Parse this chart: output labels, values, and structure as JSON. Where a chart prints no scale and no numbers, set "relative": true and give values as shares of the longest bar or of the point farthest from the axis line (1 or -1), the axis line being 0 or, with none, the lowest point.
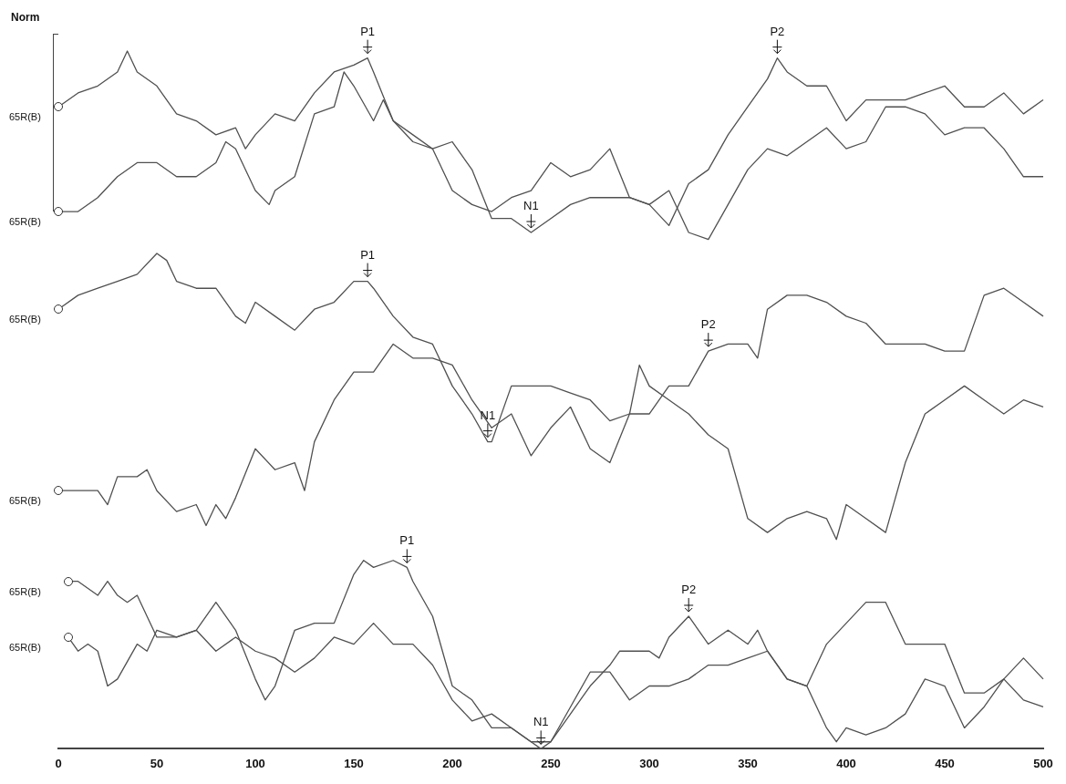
{
  "chart_data": {
    "type": "line",
    "relative": true,
    "xlim": [
      0,
      500
    ],
    "xticks": [
      0,
      50,
      100,
      150,
      200,
      250,
      300,
      350,
      400,
      450,
      500
    ],
    "annotations": [
      "Norm",
      {
        "text": "P1",
        "x": 157,
        "y": 0.99
      },
      {
        "text": "N1",
        "x": 240,
        "y": 0.74
      },
      {
        "text": "P2",
        "x": 365,
        "y": 0.99
      },
      {
        "text": "P1",
        "x": 157,
        "y": 0.67
      },
      {
        "text": "N1",
        "x": 218,
        "y": 0.44
      },
      {
        "text": "P2",
        "x": 330,
        "y": 0.57
      },
      {
        "text": "P1",
        "x": 177,
        "y": 0.26
      },
      {
        "text": "N1",
        "x": 245,
        "y": 0.0
      },
      {
        "text": "P2",
        "x": 320,
        "y": 0.19
      }
    ],
    "series": [
      {
        "name": "65R(B)",
        "color": "#505050",
        "x": [
          0,
          10,
          20,
          30,
          35,
          40,
          50,
          60,
          70,
          80,
          90,
          95,
          100,
          110,
          120,
          130,
          140,
          150,
          157,
          160,
          170,
          180,
          190,
          200,
          210,
          220,
          230,
          240,
          250,
          260,
          270,
          280,
          290,
          300,
          310,
          320,
          330,
          340,
          350,
          360,
          365,
          370,
          380,
          390,
          400,
          410,
          420,
          430,
          440,
          450,
          460,
          470,
          480,
          490,
          500
        ],
        "values": [
          0.92,
          0.94,
          0.95,
          0.97,
          1,
          0.97,
          0.95,
          0.91,
          0.9,
          0.88,
          0.89,
          0.86,
          0.88,
          0.91,
          0.9,
          0.94,
          0.97,
          0.98,
          0.99,
          0.97,
          0.9,
          0.87,
          0.86,
          0.8,
          0.78,
          0.77,
          0.79,
          0.8,
          0.84,
          0.82,
          0.83,
          0.86,
          0.79,
          0.78,
          0.75,
          0.81,
          0.83,
          0.88,
          0.92,
          0.96,
          0.99,
          0.97,
          0.95,
          0.95,
          0.9,
          0.93,
          0.93,
          0.93,
          0.94,
          0.95,
          0.92,
          0.92,
          0.94,
          0.91,
          0.93
        ]
      },
      {
        "name": "65R(B)",
        "color": "#505050",
        "x": [
          0,
          10,
          20,
          30,
          40,
          50,
          60,
          70,
          80,
          85,
          90,
          100,
          107,
          110,
          120,
          130,
          140,
          145,
          150,
          160,
          165,
          170,
          180,
          190,
          200,
          210,
          220,
          230,
          240,
          250,
          260,
          270,
          280,
          290,
          300,
          310,
          320,
          330,
          340,
          350,
          360,
          370,
          380,
          390,
          400,
          410,
          420,
          430,
          440,
          450,
          460,
          470,
          480,
          490,
          500
        ],
        "values": [
          0.77,
          0.77,
          0.79,
          0.82,
          0.84,
          0.84,
          0.82,
          0.82,
          0.84,
          0.87,
          0.86,
          0.8,
          0.78,
          0.8,
          0.82,
          0.91,
          0.92,
          0.97,
          0.95,
          0.9,
          0.93,
          0.9,
          0.88,
          0.86,
          0.87,
          0.83,
          0.76,
          0.76,
          0.74,
          0.76,
          0.78,
          0.79,
          0.79,
          0.79,
          0.78,
          0.8,
          0.74,
          0.73,
          0.78,
          0.83,
          0.86,
          0.85,
          0.87,
          0.89,
          0.86,
          0.87,
          0.92,
          0.92,
          0.91,
          0.88,
          0.89,
          0.89,
          0.86,
          0.82,
          0.82
        ]
      },
      {
        "name": "65R(B)",
        "color": "#505050",
        "x": [
          0,
          10,
          20,
          30,
          40,
          50,
          55,
          60,
          70,
          80,
          90,
          95,
          100,
          110,
          120,
          130,
          140,
          150,
          157,
          160,
          170,
          180,
          190,
          200,
          210,
          218,
          220,
          230,
          240,
          250,
          260,
          270,
          280,
          290,
          300,
          310,
          320,
          330,
          340,
          350,
          355,
          360,
          370,
          380,
          390,
          400,
          410,
          420,
          430,
          440,
          450,
          460,
          470,
          480,
          490,
          500
        ],
        "values": [
          0.63,
          0.65,
          0.66,
          0.67,
          0.68,
          0.71,
          0.7,
          0.67,
          0.66,
          0.66,
          0.62,
          0.61,
          0.64,
          0.62,
          0.6,
          0.63,
          0.64,
          0.67,
          0.67,
          0.66,
          0.62,
          0.59,
          0.58,
          0.52,
          0.48,
          0.44,
          0.44,
          0.52,
          0.52,
          0.52,
          0.51,
          0.5,
          0.47,
          0.48,
          0.48,
          0.52,
          0.52,
          0.57,
          0.58,
          0.58,
          0.56,
          0.63,
          0.65,
          0.65,
          0.64,
          0.62,
          0.61,
          0.58,
          0.58,
          0.58,
          0.57,
          0.57,
          0.65,
          0.66,
          0.64,
          0.62
        ]
      },
      {
        "name": "65R(B)",
        "color": "#505050",
        "x": [
          0,
          10,
          20,
          25,
          30,
          40,
          45,
          50,
          60,
          70,
          75,
          80,
          85,
          90,
          100,
          110,
          120,
          125,
          130,
          140,
          150,
          160,
          170,
          180,
          190,
          200,
          210,
          220,
          230,
          240,
          250,
          260,
          270,
          280,
          290,
          295,
          300,
          310,
          320,
          330,
          340,
          350,
          360,
          370,
          380,
          390,
          395,
          400,
          410,
          420,
          430,
          440,
          450,
          460,
          470,
          480,
          490,
          500
        ],
        "values": [
          0.37,
          0.37,
          0.37,
          0.35,
          0.39,
          0.39,
          0.4,
          0.37,
          0.34,
          0.35,
          0.32,
          0.35,
          0.33,
          0.36,
          0.43,
          0.4,
          0.41,
          0.37,
          0.44,
          0.5,
          0.54,
          0.54,
          0.58,
          0.56,
          0.56,
          0.55,
          0.5,
          0.46,
          0.48,
          0.42,
          0.46,
          0.49,
          0.43,
          0.41,
          0.48,
          0.55,
          0.52,
          0.5,
          0.48,
          0.45,
          0.43,
          0.33,
          0.31,
          0.33,
          0.34,
          0.33,
          0.3,
          0.35,
          0.33,
          0.31,
          0.41,
          0.48,
          0.5,
          0.52,
          0.5,
          0.48,
          0.5,
          0.49
        ]
      },
      {
        "name": "65R(B)",
        "color": "#505050",
        "x": [
          5,
          10,
          20,
          25,
          30,
          35,
          40,
          50,
          60,
          70,
          80,
          90,
          100,
          105,
          110,
          120,
          130,
          140,
          150,
          155,
          160,
          170,
          177,
          180,
          190,
          200,
          210,
          220,
          230,
          240,
          250,
          260,
          270,
          280,
          285,
          290,
          300,
          305,
          310,
          320,
          330,
          340,
          350,
          355,
          360,
          370,
          380,
          390,
          400,
          410,
          420,
          430,
          440,
          450,
          460,
          470,
          480,
          490,
          500
        ],
        "values": [
          0.24,
          0.24,
          0.22,
          0.24,
          0.22,
          0.21,
          0.22,
          0.16,
          0.16,
          0.17,
          0.21,
          0.17,
          0.1,
          0.07,
          0.09,
          0.17,
          0.18,
          0.18,
          0.25,
          0.27,
          0.26,
          0.27,
          0.26,
          0.24,
          0.19,
          0.09,
          0.07,
          0.03,
          0.03,
          0.01,
          0.01,
          0.05,
          0.09,
          0.12,
          0.14,
          0.14,
          0.14,
          0.13,
          0.16,
          0.19,
          0.15,
          0.17,
          0.15,
          0.17,
          0.14,
          0.1,
          0.09,
          0.15,
          0.18,
          0.21,
          0.21,
          0.15,
          0.15,
          0.15,
          0.08,
          0.08,
          0.1,
          0.13,
          0.1
        ]
      },
      {
        "name": "65R(B)",
        "color": "#505050",
        "x": [
          5,
          10,
          15,
          20,
          25,
          30,
          40,
          45,
          50,
          60,
          70,
          80,
          90,
          100,
          110,
          120,
          130,
          140,
          150,
          160,
          170,
          180,
          190,
          200,
          210,
          220,
          230,
          240,
          245,
          250,
          260,
          270,
          280,
          290,
          300,
          310,
          320,
          330,
          340,
          350,
          360,
          370,
          380,
          390,
          395,
          400,
          410,
          420,
          430,
          440,
          450,
          460,
          470,
          480,
          490,
          500
        ],
        "values": [
          0.16,
          0.14,
          0.15,
          0.14,
          0.09,
          0.1,
          0.15,
          0.14,
          0.17,
          0.16,
          0.17,
          0.14,
          0.16,
          0.14,
          0.13,
          0.11,
          0.13,
          0.16,
          0.15,
          0.18,
          0.15,
          0.15,
          0.12,
          0.07,
          0.04,
          0.05,
          0.03,
          0.01,
          0,
          0.01,
          0.06,
          0.11,
          0.11,
          0.07,
          0.09,
          0.09,
          0.1,
          0.12,
          0.12,
          0.13,
          0.14,
          0.1,
          0.09,
          0.03,
          0.01,
          0.03,
          0.02,
          0.03,
          0.05,
          0.1,
          0.09,
          0.03,
          0.06,
          0.1,
          0.07,
          0.06
        ]
      }
    ]
  }
}
